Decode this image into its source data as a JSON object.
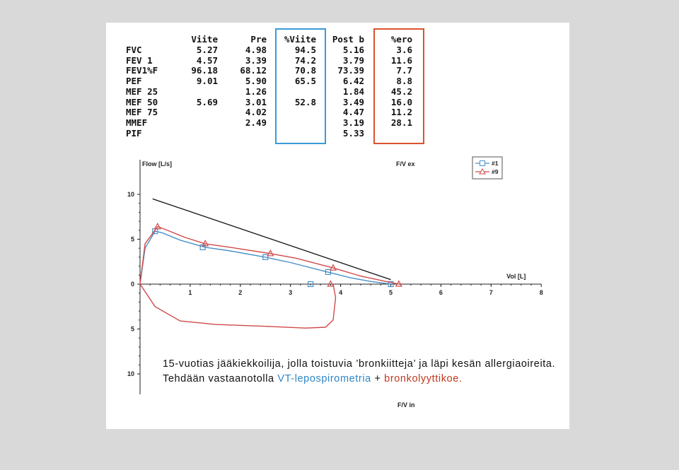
{
  "table": {
    "headers": [
      "",
      "Viite",
      "Pre",
      "%Viite",
      "Post b",
      "%ero"
    ],
    "rows": [
      {
        "label": "FVC",
        "viite": "5.27",
        "pre": "4.98",
        "pviite": "94.5",
        "post": "5.16",
        "ero": "3.6"
      },
      {
        "label": "FEV 1",
        "viite": "4.57",
        "pre": "3.39",
        "pviite": "74.2",
        "post": "3.79",
        "ero": "11.6"
      },
      {
        "label": "FEV1%F",
        "viite": "96.18",
        "pre": "68.12",
        "pviite": "70.8",
        "post": "73.39",
        "ero": "7.7"
      },
      {
        "label": "PEF",
        "viite": "9.01",
        "pre": "5.90",
        "pviite": "65.5",
        "post": "6.42",
        "ero": "8.8"
      },
      {
        "label": "MEF 25",
        "viite": "",
        "pre": "1.26",
        "pviite": "",
        "post": "1.84",
        "ero": "45.2"
      },
      {
        "label": "MEF 50",
        "viite": "5.69",
        "pre": "3.01",
        "pviite": "52.8",
        "post": "3.49",
        "ero": "16.0"
      },
      {
        "label": "MEF 75",
        "viite": "",
        "pre": "4.02",
        "pviite": "",
        "post": "4.47",
        "ero": "11.2"
      },
      {
        "label": "MMEF",
        "viite": "",
        "pre": "2.49",
        "pviite": "",
        "post": "3.19",
        "ero": "28.1"
      },
      {
        "label": "PIF",
        "viite": "",
        "pre": "",
        "pviite": "",
        "post": "5.33",
        "ero": ""
      }
    ]
  },
  "chart_data": {
    "type": "line",
    "ylabel": "Flow [L/s]",
    "xlabel": "Vol [L]",
    "top_label": "F/V ex",
    "bottom_label": "F/V in",
    "xlim": [
      0,
      8
    ],
    "ylim": [
      -10,
      10
    ],
    "x_ticks": [
      "1",
      "2",
      "3",
      "4",
      "5",
      "6",
      "7",
      "8"
    ],
    "y_ticks": [
      "10",
      "5",
      "0",
      "5",
      "10"
    ],
    "legend_position": "top-right",
    "series": [
      {
        "name": "#1",
        "color": "#4a90c8",
        "marker": "square",
        "expiratory": [
          [
            0,
            0
          ],
          [
            0.1,
            4.0
          ],
          [
            0.3,
            5.9
          ],
          [
            0.45,
            5.7
          ],
          [
            0.8,
            4.9
          ],
          [
            1.3,
            4.1
          ],
          [
            1.8,
            3.7
          ],
          [
            2.5,
            3.0
          ],
          [
            3.0,
            2.4
          ],
          [
            3.7,
            1.4
          ],
          [
            4.2,
            0.7
          ],
          [
            4.6,
            0.3
          ],
          [
            5.0,
            0.0
          ]
        ],
        "markers": [
          [
            0.3,
            5.9
          ],
          [
            1.25,
            4.1
          ],
          [
            2.5,
            3.0
          ],
          [
            3.75,
            1.35
          ],
          [
            3.4,
            0.0
          ],
          [
            5.0,
            0.0
          ]
        ]
      },
      {
        "name": "#9",
        "color": "#d04a4a",
        "marker": "triangle",
        "expiratory": [
          [
            0,
            0
          ],
          [
            0.1,
            4.5
          ],
          [
            0.35,
            6.4
          ],
          [
            0.5,
            6.1
          ],
          [
            0.9,
            5.2
          ],
          [
            1.3,
            4.5
          ],
          [
            1.8,
            4.1
          ],
          [
            2.6,
            3.4
          ],
          [
            3.1,
            2.9
          ],
          [
            3.85,
            1.8
          ],
          [
            4.4,
            0.9
          ],
          [
            4.9,
            0.3
          ],
          [
            5.16,
            0.0
          ]
        ],
        "inspiratory": [
          [
            0,
            0
          ],
          [
            0.3,
            -2.5
          ],
          [
            0.8,
            -4.1
          ],
          [
            1.5,
            -4.5
          ],
          [
            2.5,
            -4.7
          ],
          [
            3.3,
            -4.9
          ],
          [
            3.7,
            -4.8
          ],
          [
            3.85,
            -4.0
          ],
          [
            3.9,
            -1.5
          ],
          [
            3.85,
            0.0
          ]
        ],
        "markers": [
          [
            0.35,
            6.4
          ],
          [
            1.3,
            4.5
          ],
          [
            2.6,
            3.4
          ],
          [
            3.85,
            1.8
          ],
          [
            3.8,
            0.0
          ],
          [
            5.16,
            0.0
          ]
        ]
      }
    ],
    "annotation_line": [
      [
        0.25,
        9.5
      ],
      [
        5.0,
        0.5
      ]
    ]
  },
  "caption": {
    "line1": "15-vuotias jääkiekkoilija, jolla toistuvia ’bronkiitteja’ ja läpi kesän allergiaoireita.",
    "line2_prefix": "Tehdään vastaanotolla ",
    "line2_blue": "VT-lepospirometria",
    "line2_mid": " + ",
    "line2_red": "bronkolyyttikoe."
  }
}
